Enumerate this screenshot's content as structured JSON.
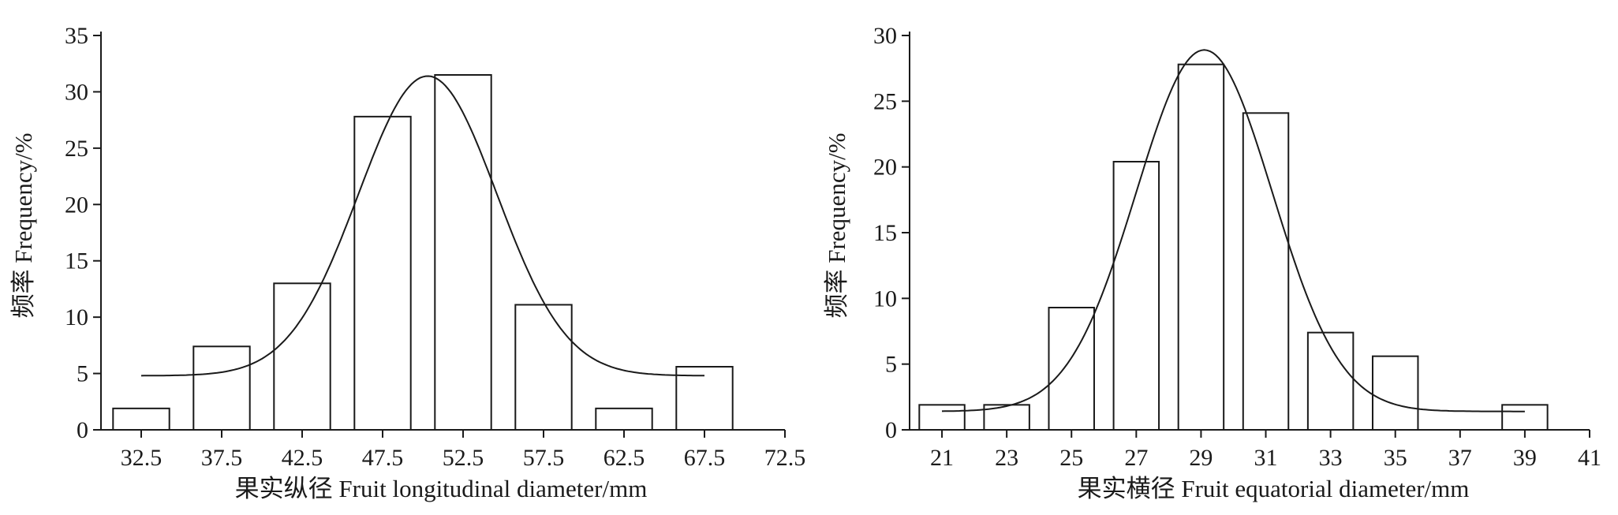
{
  "chart_data": [
    {
      "type": "bar",
      "overlay": "normal-curve",
      "xlabel": "果实纵径 Fruit longitudinal diameter/mm",
      "ylabel": "频率 Frequency/%",
      "ylim": [
        0,
        35
      ],
      "yticks": [
        "0",
        "5",
        "10",
        "15",
        "20",
        "25",
        "30",
        "35"
      ],
      "xlim": [
        30,
        72.5
      ],
      "xticks": [
        "32.5",
        "37.5",
        "42.5",
        "47.5",
        "52.5",
        "57.5",
        "62.5",
        "67.5",
        "72.5"
      ],
      "bar_width": 3.5,
      "bars": [
        {
          "x": 32.5,
          "value": 1.9
        },
        {
          "x": 37.5,
          "value": 7.4
        },
        {
          "x": 42.5,
          "value": 13.0
        },
        {
          "x": 47.5,
          "value": 27.8
        },
        {
          "x": 52.5,
          "value": 31.5
        },
        {
          "x": 57.5,
          "value": 11.1
        },
        {
          "x": 62.5,
          "value": 1.9
        },
        {
          "x": 67.5,
          "value": 5.6
        }
      ],
      "curve": {
        "x_start": 32.5,
        "x_end": 67.5,
        "baseline": 4.8,
        "peak": 31.4,
        "mean": 50.3,
        "sd": 4.3
      },
      "grid": false
    },
    {
      "type": "bar",
      "overlay": "normal-curve",
      "xlabel": "果实横径 Fruit equatorial diameter/mm",
      "ylabel": "频率 Frequency/%",
      "ylim": [
        0,
        30
      ],
      "yticks": [
        "0",
        "5",
        "10",
        "15",
        "20",
        "25",
        "30"
      ],
      "xlim": [
        20,
        41
      ],
      "xticks": [
        "21",
        "23",
        "25",
        "27",
        "29",
        "31",
        "33",
        "35",
        "37",
        "39",
        "41"
      ],
      "bar_width": 1.4,
      "bars": [
        {
          "x": 21,
          "value": 1.9
        },
        {
          "x": 23,
          "value": 1.9
        },
        {
          "x": 25,
          "value": 9.3
        },
        {
          "x": 27,
          "value": 20.4
        },
        {
          "x": 29,
          "value": 27.8
        },
        {
          "x": 31,
          "value": 24.1
        },
        {
          "x": 33,
          "value": 7.4
        },
        {
          "x": 35,
          "value": 5.6
        },
        {
          "x": 39,
          "value": 1.9
        }
      ],
      "curve": {
        "x_start": 21,
        "x_end": 39,
        "baseline": 1.4,
        "peak": 28.9,
        "mean": 29.1,
        "sd": 2.1
      },
      "grid": false
    }
  ]
}
